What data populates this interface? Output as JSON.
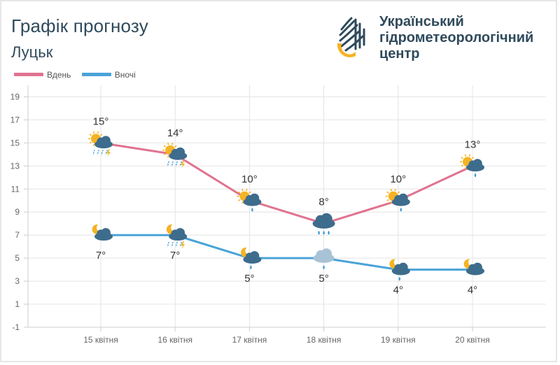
{
  "header": {
    "title": "Графік прогнозу",
    "city": "Луцьк",
    "org_line1": "Український",
    "org_line2": "гідрометеорологічний",
    "org_line3": "центр"
  },
  "legend": {
    "day_label": "Вдень",
    "night_label": "Вночі"
  },
  "colors": {
    "day": "#e0738f",
    "night": "#4aa3d8",
    "text_dark": "#2f4a5c",
    "sun": "#f5b324",
    "cloud": "#3d6c8c",
    "rain": "#3a98d6"
  },
  "chart_data": {
    "type": "line",
    "categories": [
      "15 квітня",
      "16 квітня",
      "17 квітня",
      "18 квітня",
      "19 квітня",
      "20 квітня"
    ],
    "y_ticks": [
      -1,
      1,
      3,
      5,
      7,
      9,
      11,
      13,
      15,
      17,
      19
    ],
    "ylim": [
      -1,
      20
    ],
    "grid": true,
    "legend_position": "top-left",
    "series": [
      {
        "name": "Вдень",
        "values": [
          15,
          14,
          10,
          8,
          10,
          13
        ],
        "labels": [
          "15°",
          "14°",
          "10°",
          "8°",
          "10°",
          "13°"
        ],
        "icons": [
          "sun-cloud-rain-thunder-icon",
          "sun-cloud-rain-thunder-icon",
          "sun-cloud-rain-icon",
          "cloud-rain-icon",
          "sun-cloud-rain-icon",
          "sun-cloud-rain-icon"
        ]
      },
      {
        "name": "Вночі",
        "values": [
          7,
          7,
          5,
          5,
          4,
          4
        ],
        "labels": [
          "7°",
          "7°",
          "5°",
          "5°",
          "4°",
          "4°"
        ],
        "icons": [
          "moon-cloud-icon",
          "moon-cloud-rain-thunder-icon",
          "moon-cloud-rain-icon",
          "cloud-rain-light-icon",
          "moon-cloud-rain-icon",
          "moon-cloud-icon"
        ]
      }
    ]
  }
}
